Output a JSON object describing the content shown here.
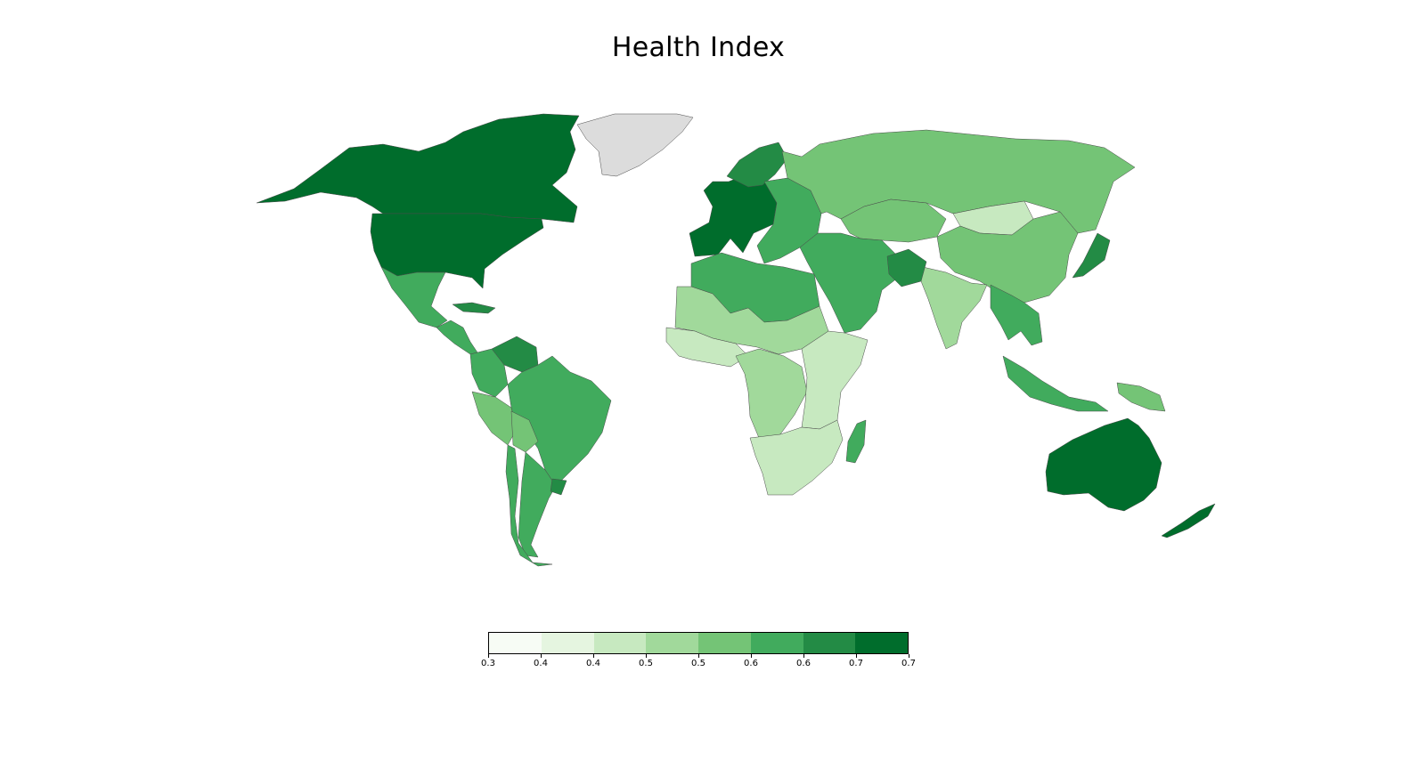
{
  "title": "Health Index",
  "legend": {
    "colors": [
      "#f7fcf5",
      "#e5f5e0",
      "#c7e9c0",
      "#a1d99b",
      "#74c476",
      "#41ab5d",
      "#238b45",
      "#006d2c"
    ],
    "tick_labels": [
      "0.3",
      "0.4",
      "0.4",
      "0.5",
      "0.5",
      "0.6",
      "0.6",
      "0.7",
      "0.7"
    ],
    "range": [
      0.3,
      0.7
    ]
  },
  "no_data_color": "#dcdcdc",
  "regions": [
    {
      "name": "Canada",
      "value": 0.68
    },
    {
      "name": "United States",
      "value": 0.68
    },
    {
      "name": "Greenland",
      "value": null
    },
    {
      "name": "Mexico",
      "value": 0.58
    },
    {
      "name": "Central America",
      "value": 0.58
    },
    {
      "name": "Cuba",
      "value": 0.63
    },
    {
      "name": "Venezuela",
      "value": 0.62
    },
    {
      "name": "Colombia",
      "value": 0.58
    },
    {
      "name": "Peru",
      "value": 0.53
    },
    {
      "name": "Brazil",
      "value": 0.57
    },
    {
      "name": "Bolivia",
      "value": 0.52
    },
    {
      "name": "Argentina",
      "value": 0.57
    },
    {
      "name": "Chile",
      "value": 0.58
    },
    {
      "name": "Uruguay",
      "value": 0.62
    },
    {
      "name": "Western Europe",
      "value": 0.68
    },
    {
      "name": "Scandinavia",
      "value": 0.64
    },
    {
      "name": "Eastern Europe",
      "value": 0.58
    },
    {
      "name": "Russia",
      "value": 0.5
    },
    {
      "name": "Kazakhstan",
      "value": 0.51
    },
    {
      "name": "Mongolia",
      "value": 0.42
    },
    {
      "name": "China",
      "value": 0.53
    },
    {
      "name": "India",
      "value": 0.49
    },
    {
      "name": "Middle East",
      "value": 0.58
    },
    {
      "name": "Afghanistan",
      "value": 0.62
    },
    {
      "name": "Southeast Asia",
      "value": 0.55
    },
    {
      "name": "Japan",
      "value": 0.63
    },
    {
      "name": "North Africa",
      "value": 0.56
    },
    {
      "name": "Sahel",
      "value": 0.49
    },
    {
      "name": "West Africa",
      "value": 0.44
    },
    {
      "name": "Central Africa",
      "value": 0.48
    },
    {
      "name": "East Africa",
      "value": 0.43
    },
    {
      "name": "Southern Africa",
      "value": 0.42
    },
    {
      "name": "Madagascar",
      "value": 0.58
    },
    {
      "name": "Indonesia",
      "value": 0.55
    },
    {
      "name": "Papua New Guinea",
      "value": 0.52
    },
    {
      "name": "Australia",
      "value": 0.72
    },
    {
      "name": "New Zealand",
      "value": 0.68
    }
  ]
}
